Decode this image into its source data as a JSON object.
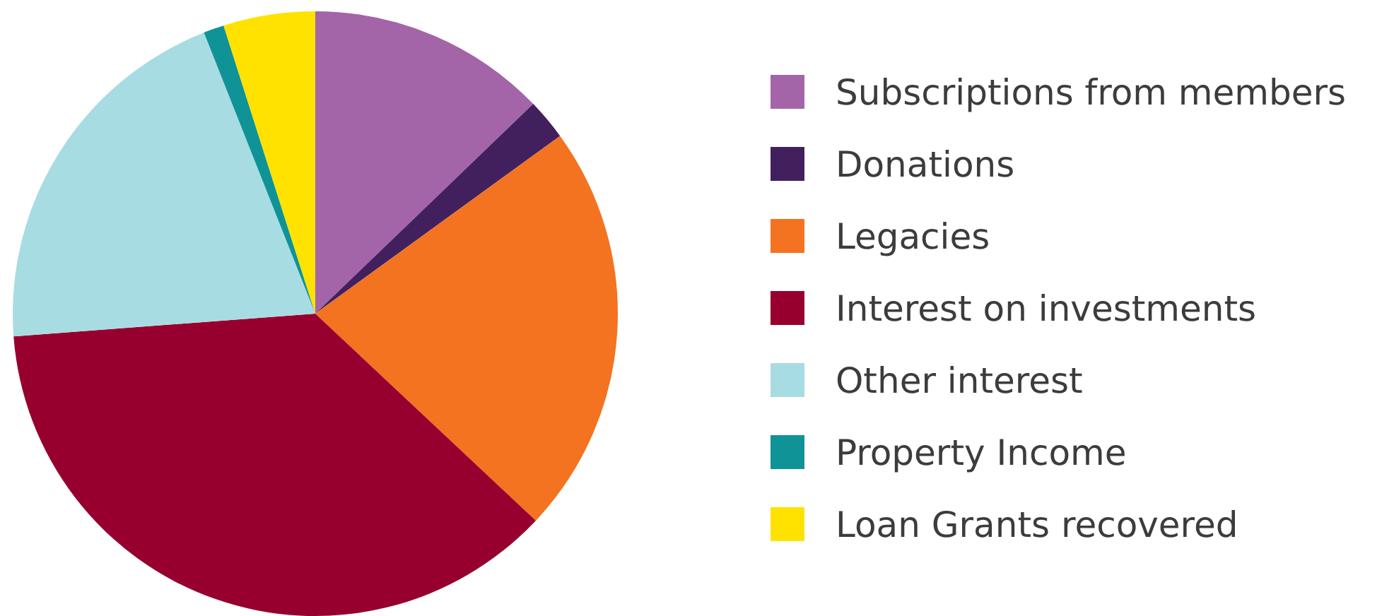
{
  "chart_data": {
    "type": "pie",
    "categories": [
      "Subscriptions from members",
      "Donations",
      "Legacies",
      "Interest on investments",
      "Other interest",
      "Property Income",
      "Loan Grants recovered"
    ],
    "values": [
      12.8,
      2.2,
      22,
      36.8,
      20.2,
      1.1,
      4.9
    ],
    "colors": [
      "#a465a8",
      "#42205e",
      "#f37321",
      "#97002e",
      "#a8dce3",
      "#0f9397",
      "#ffe200"
    ],
    "legend": "right"
  }
}
